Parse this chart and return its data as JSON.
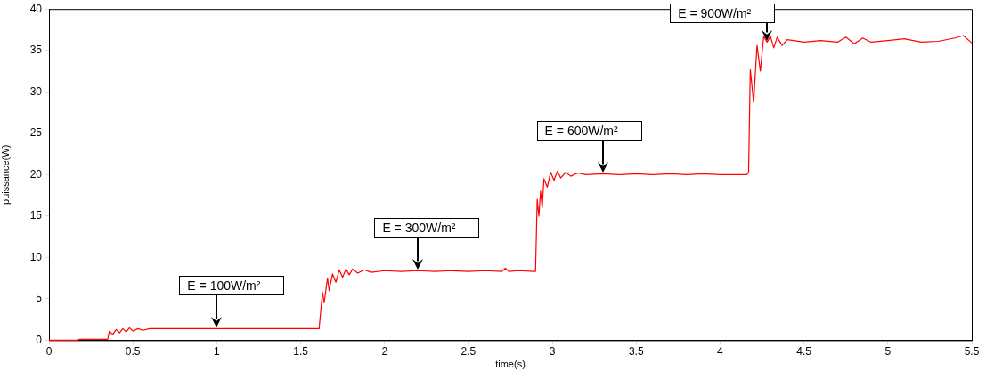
{
  "chart_data": {
    "type": "line",
    "xlabel": "time(s)",
    "ylabel": "puissance(W)",
    "series": [
      {
        "color": "#ff0000",
        "x": [
          0,
          0.17,
          0.18,
          0.35,
          0.36,
          0.38,
          0.4,
          0.42,
          0.44,
          0.46,
          0.48,
          0.5,
          0.53,
          0.56,
          0.6,
          1.0,
          1.6,
          1.61,
          1.63,
          1.64,
          1.66,
          1.67,
          1.69,
          1.71,
          1.73,
          1.75,
          1.77,
          1.79,
          1.81,
          1.84,
          1.88,
          1.92,
          2.0,
          2.1,
          2.2,
          2.3,
          2.4,
          2.5,
          2.6,
          2.7,
          2.72,
          2.74,
          2.8,
          2.89,
          2.9,
          2.91,
          2.92,
          2.93,
          2.94,
          2.95,
          2.97,
          2.99,
          3.01,
          3.03,
          3.05,
          3.08,
          3.11,
          3.15,
          3.2,
          3.3,
          3.4,
          3.5,
          3.6,
          3.7,
          3.8,
          3.9,
          4.0,
          4.1,
          4.16,
          4.17,
          4.18,
          4.2,
          4.22,
          4.24,
          4.26,
          4.28,
          4.3,
          4.32,
          4.34,
          4.37,
          4.4,
          4.5,
          4.6,
          4.7,
          4.75,
          4.8,
          4.85,
          4.9,
          5.0,
          5.1,
          5.2,
          5.3,
          5.4,
          5.45,
          5.5
        ],
        "values": [
          0,
          0,
          0.1,
          0.1,
          1.1,
          0.7,
          1.3,
          0.9,
          1.4,
          1.0,
          1.5,
          1.1,
          1.4,
          1.2,
          1.4,
          1.4,
          1.4,
          1.4,
          5.8,
          4.5,
          7.5,
          6.0,
          8.0,
          7.0,
          8.5,
          7.6,
          8.6,
          7.9,
          8.6,
          8.1,
          8.5,
          8.2,
          8.4,
          8.3,
          8.4,
          8.3,
          8.4,
          8.3,
          8.4,
          8.3,
          8.7,
          8.3,
          8.4,
          8.3,
          8.3,
          17,
          15,
          18,
          16,
          19.5,
          18.5,
          20.3,
          19.3,
          20.4,
          19.6,
          20.3,
          19.8,
          20.2,
          20,
          20.1,
          20.0,
          20.1,
          20.0,
          20.1,
          20.0,
          20.1,
          20.0,
          20.0,
          20.0,
          20.3,
          32.7,
          28.7,
          35.6,
          32.5,
          36.7,
          36.0,
          36.7,
          35.3,
          36.6,
          35.6,
          36.3,
          36.0,
          36.2,
          36.0,
          36.6,
          35.8,
          36.5,
          36.0,
          36.2,
          36.4,
          36.0,
          36.1,
          36.5,
          36.8,
          35.9
        ]
      }
    ],
    "xlim": [
      0,
      5.5
    ],
    "xticks": [
      0,
      0.5,
      1,
      1.5,
      2,
      2.5,
      3,
      3.5,
      4,
      4.5,
      5,
      5.5
    ],
    "ylim": [
      0,
      40
    ],
    "yticks": [
      0,
      5,
      10,
      15,
      20,
      25,
      30,
      35,
      40
    ],
    "grid": false,
    "legend": false,
    "marker": "none",
    "line_style": "solid",
    "annotations": [
      {
        "text": "E = 100W/m²",
        "x": 1.0,
        "y": 1.4
      },
      {
        "text": "E = 300W/m²",
        "x": 2.2,
        "y": 8.4
      },
      {
        "text": "E = 600W/m²",
        "x": 3.3,
        "y": 20.1
      },
      {
        "text": "E = 900W/m²",
        "x": 4.28,
        "y": 36.0
      }
    ]
  }
}
